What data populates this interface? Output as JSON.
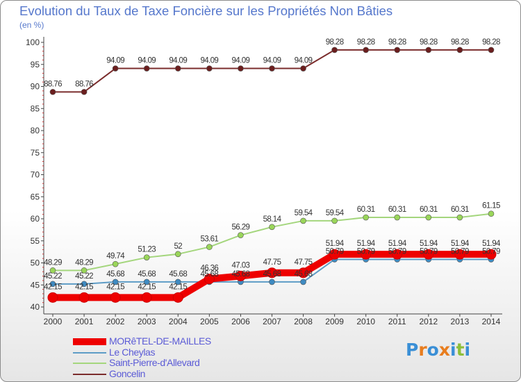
{
  "header": {
    "title": "Evolution du Taux de Taxe Foncière sur les Propriétés Non Bâties",
    "unit": "(en %)"
  },
  "logo": {
    "text": "Proxiti",
    "letters": [
      "P",
      "r",
      "o",
      "x",
      "i",
      "t",
      "i"
    ],
    "colors": [
      "#3a8fd6",
      "#e87d1e",
      "#3a8fd6",
      "#e87d1e",
      "#3a8fd6",
      "#8dbf3a",
      "#3a8fd6"
    ]
  },
  "chart_data": {
    "type": "line",
    "title": "Evolution du Taux de Taxe Foncière sur les Propriétés Non Bâties",
    "ylabel": "(en %)",
    "xlabel": "",
    "ylim": [
      40,
      100
    ],
    "yticks": [
      40,
      45,
      50,
      55,
      60,
      65,
      70,
      75,
      80,
      85,
      90,
      95,
      100
    ],
    "grid": false,
    "categories": [
      "2000",
      "2001",
      "2002",
      "2003",
      "2004",
      "2005",
      "2006",
      "2007",
      "2008",
      "2009",
      "2010",
      "2011",
      "2012",
      "2013",
      "2014"
    ],
    "series": [
      {
        "name": "Goncelin",
        "color": "#7b2d2d",
        "dot": "#6b1e1e",
        "values": [
          88.76,
          88.76,
          94.09,
          94.09,
          94.09,
          94.09,
          94.09,
          94.09,
          94.09,
          98.28,
          98.28,
          98.28,
          98.28,
          98.28,
          98.28
        ],
        "labels": [
          "88.76",
          "88.76",
          "94.09",
          "94.09",
          "94.09",
          "94.09",
          "94.09",
          "94.09",
          "94.09",
          "98.28",
          "98.28",
          "98.28",
          "98.28",
          "98.28",
          "98.28"
        ]
      },
      {
        "name": "Saint-Pierre-d'Allevard",
        "color": "#a4d67d",
        "dot": "#9ad65a",
        "values": [
          48.29,
          48.29,
          49.74,
          51.23,
          52,
          53.61,
          56.29,
          58.14,
          59.54,
          59.54,
          60.31,
          60.31,
          60.31,
          60.31,
          61.15
        ],
        "labels": [
          "48.29",
          "48.29",
          "49.74",
          "51.23",
          "52",
          "53.61",
          "56.29",
          "58.14",
          "59.54",
          "59.54",
          "60.31",
          "60.31",
          "60.31",
          "60.31",
          "61.15"
        ]
      },
      {
        "name": "Le Cheylas",
        "color": "#5d9cc6",
        "dot": "#3f8bc2",
        "values": [
          45.22,
          45.22,
          45.68,
          45.68,
          45.68,
          45.68,
          45.68,
          45.68,
          45.68,
          50.79,
          50.79,
          50.79,
          50.79,
          50.79,
          50.79
        ],
        "labels": [
          "45.22",
          "45.22",
          "45.68",
          "45.68",
          "45.68",
          "45.68",
          "45.68",
          "45.68",
          "45.68",
          "50.79",
          "50.79",
          "50.79",
          "50.79",
          "50.79",
          "50.79"
        ]
      },
      {
        "name": "MORêTEL-DE-MAILLES",
        "color": "#ee0000",
        "dot": "#ee0000",
        "values": [
          42.15,
          42.15,
          42.15,
          42.15,
          42.15,
          46.36,
          47.03,
          47.75,
          47.75,
          51.94,
          51.94,
          51.94,
          51.94,
          51.94,
          51.94
        ],
        "labels": [
          "42.15",
          "42.15",
          "42.15",
          "42.15",
          "42.15",
          "46.36",
          "47.03",
          "47.75",
          "47.75",
          "51.94",
          "51.94",
          "51.94",
          "51.94",
          "51.94",
          "51.94"
        ]
      }
    ],
    "legend": [
      "MORêTEL-DE-MAILLES",
      "Le Cheylas",
      "Saint-Pierre-d'Allevard",
      "Goncelin"
    ],
    "legend_position": "bottom-left"
  }
}
